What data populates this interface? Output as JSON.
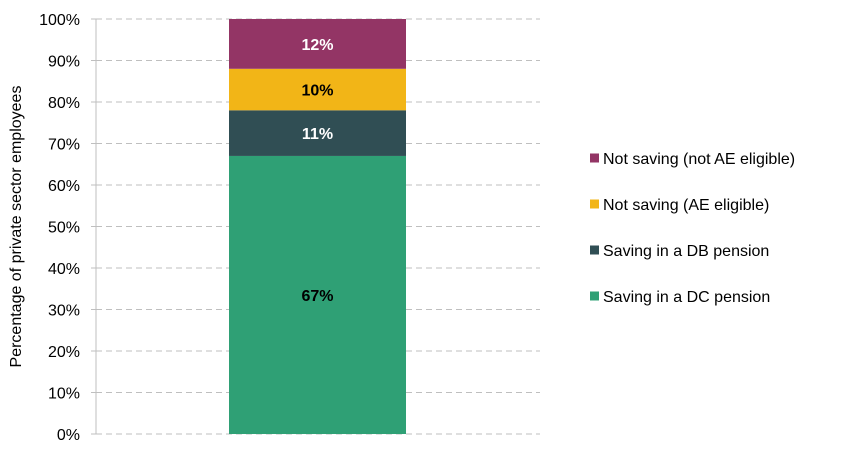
{
  "chart_data": {
    "type": "bar",
    "stacked": true,
    "ylabel": "Percentage of private sector employees",
    "ylim": [
      0,
      100
    ],
    "yticks": [
      "0%",
      "10%",
      "20%",
      "30%",
      "40%",
      "50%",
      "60%",
      "70%",
      "80%",
      "90%",
      "100%"
    ],
    "grid": true,
    "legend_position": "right",
    "series": [
      {
        "name": "Saving in a DC pension",
        "value": 67,
        "label": "67%",
        "color": "#2fa075",
        "label_color": "#000000"
      },
      {
        "name": "Saving in a DB pension",
        "value": 11,
        "label": "11%",
        "color": "#304e54",
        "label_color": "#ffffff"
      },
      {
        "name": "Not saving (AE eligible)",
        "value": 10,
        "label": "10%",
        "color": "#f2b517",
        "label_color": "#000000"
      },
      {
        "name": "Not saving (not AE eligible)",
        "value": 12,
        "label": "12%",
        "color": "#933565",
        "label_color": "#ffffff"
      }
    ],
    "legend_order": [
      3,
      2,
      1,
      0
    ]
  }
}
